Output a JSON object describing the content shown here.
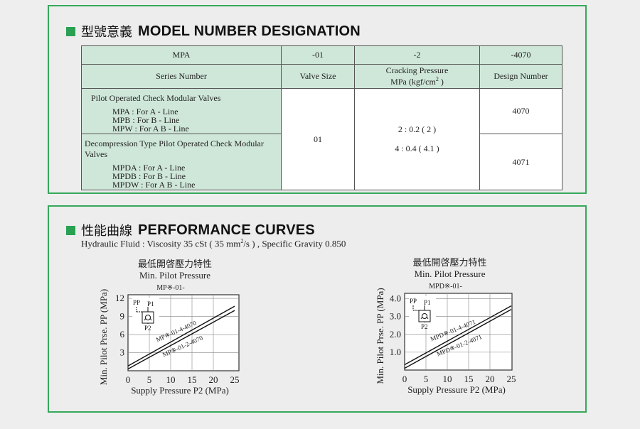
{
  "model": {
    "title_cn": "型號意義",
    "title_en": "MODEL NUMBER DESIGNATION",
    "code_row": [
      "MPA",
      "-01",
      "-2",
      "-4070"
    ],
    "label_row": [
      "Series Number",
      "Valve Size",
      "Cracking Pressure",
      "Design Number"
    ],
    "cracking_unit": "MPa (kgf/cm",
    "cracking_unit_sup": "2",
    "cracking_unit_end": " )",
    "group1_title": "Pilot Operated Check Modular Valves",
    "group1_items": [
      "MPA  : For  A - Line",
      "MPB  : For  B - Line",
      "MPW : For  A B - Line"
    ],
    "group2_title": "Decompression Type Pilot Operated Check Modular Valves",
    "group2_items": [
      "MPDA  : For  A - Line",
      "MPDB  : For  B - Line",
      "MPDW : For  A B - Line"
    ],
    "valve_size": "01",
    "cracking_values": [
      "2 : 0.2 ( 2 )",
      "4 : 0.4 ( 4.1 )"
    ],
    "design_numbers": [
      "4070",
      "4071"
    ]
  },
  "perf": {
    "title_cn": "性能曲線",
    "title_en": "PERFORMANCE CURVES",
    "fluid_a": "Hydraulic Fluid : Viscosity 35 cSt ( 35 mm",
    "fluid_sup": "2",
    "fluid_b": "/s ) , Specific Gravity 0.850"
  },
  "chart_data": [
    {
      "type": "line",
      "title": "最低開啓壓力特性",
      "subtitle": "Min. Pilot Pressure",
      "model_label": "MP※-01-",
      "xlabel": "Supply Pressure P2 (MPa)",
      "ylabel": "Min. Pilot Prse. PP (MPa)",
      "xlim": [
        0,
        25
      ],
      "ylim": [
        0,
        12.6
      ],
      "x_ticks": [
        0,
        5,
        10,
        15,
        20,
        25
      ],
      "y_ticks": [
        3,
        6,
        9,
        12
      ],
      "series": [
        {
          "name": "MP※-01-4-4070",
          "x": [
            0,
            25
          ],
          "y": [
            0.8,
            10.7
          ]
        },
        {
          "name": "MP※-01-2-4070",
          "x": [
            0,
            25
          ],
          "y": [
            0.3,
            10.0
          ]
        }
      ],
      "symbol_labels": [
        "PP",
        "P1",
        "P2"
      ]
    },
    {
      "type": "line",
      "title": "最低開啓壓力特性",
      "subtitle": "Min. Pilot Pressure",
      "model_label": "MPD※-01-",
      "xlabel": "Supply Pressure P2 (MPa)",
      "ylabel": "Min. Pilot Prse. PP (MPa)",
      "xlim": [
        0,
        25
      ],
      "ylim": [
        0,
        4.3
      ],
      "x_ticks": [
        0,
        5,
        10,
        15,
        20,
        25
      ],
      "y_ticks": [
        "1.0",
        "2.0",
        "3.0",
        "4.0"
      ],
      "series": [
        {
          "name": "MPD※-01-4-4071",
          "x": [
            0,
            25
          ],
          "y": [
            0.3,
            3.6
          ]
        },
        {
          "name": "MPD※-01-2-4071",
          "x": [
            0,
            25
          ],
          "y": [
            0.1,
            3.4
          ]
        }
      ],
      "symbol_labels": [
        "PP",
        "P1",
        "P2"
      ]
    }
  ]
}
